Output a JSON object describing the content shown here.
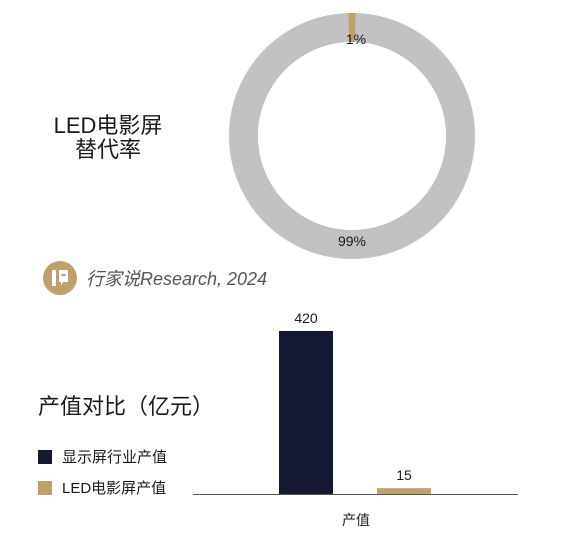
{
  "brand": {
    "text": "行家说Research, 2024",
    "logo_icon": "brand-logo-icon"
  },
  "chart_data": [
    {
      "type": "pie",
      "style": "donut",
      "title_lines": [
        "LED电影屏",
        "替代率"
      ],
      "slices": [
        {
          "label": "99%",
          "value": 99,
          "color": "#c2c2c2"
        },
        {
          "label": "1%",
          "value": 1,
          "color": "#bfa06b"
        }
      ]
    },
    {
      "type": "bar",
      "title": "产值对比（亿元）",
      "categories": [
        "产值"
      ],
      "series": [
        {
          "name": "显示屏行业产值",
          "values": [
            420
          ],
          "value_labels": [
            "420"
          ],
          "color": "#141833"
        },
        {
          "name": "LED电影屏产值",
          "values": [
            15
          ],
          "value_labels": [
            "15"
          ],
          "color": "#bfa06b"
        }
      ],
      "ylim": [
        0,
        420
      ],
      "legend_position": "left"
    }
  ]
}
